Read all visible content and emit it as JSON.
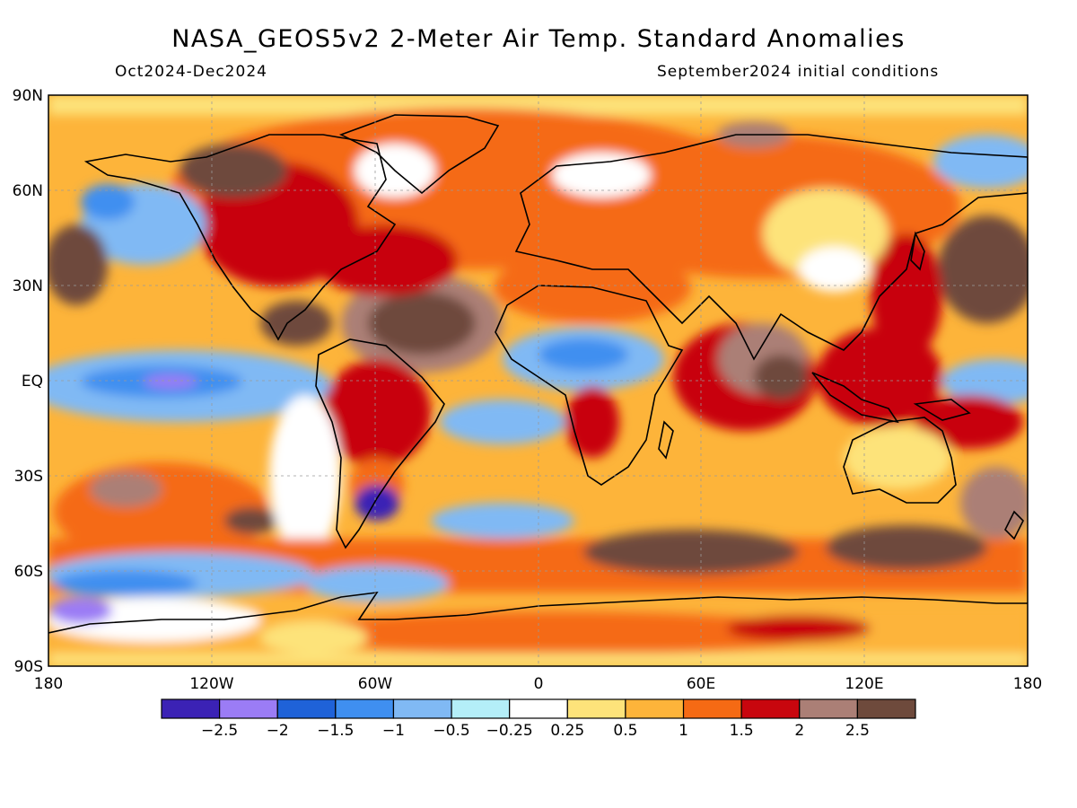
{
  "header": {
    "title": "NASA_GEOS5v2 2-Meter Air Temp. Standard Anomalies",
    "period": "Oct2024-Dec2024",
    "init": "September2024 initial conditions"
  },
  "axes": {
    "lat_labels": [
      "90N",
      "60N",
      "30N",
      "EQ",
      "30S",
      "60S",
      "90S"
    ],
    "lon_labels": [
      "180",
      "120W",
      "60W",
      "0",
      "60E",
      "120E",
      "180"
    ]
  },
  "colorbar": {
    "colors": [
      "#3b22b5",
      "#9b7cf5",
      "#1f62d8",
      "#3f8ff0",
      "#80b9f4",
      "#b4eef8",
      "#ffffff",
      "#fde37a",
      "#fdb43a",
      "#f56a14",
      "#c8060e",
      "#ab7f76",
      "#6e4a3c"
    ],
    "tick_labels": [
      "-2.5",
      "-2",
      "-1.5",
      "-1",
      "-0.5",
      "-0.25",
      "0.25",
      "0.5",
      "1",
      "1.5",
      "2",
      "2.5"
    ]
  }
}
